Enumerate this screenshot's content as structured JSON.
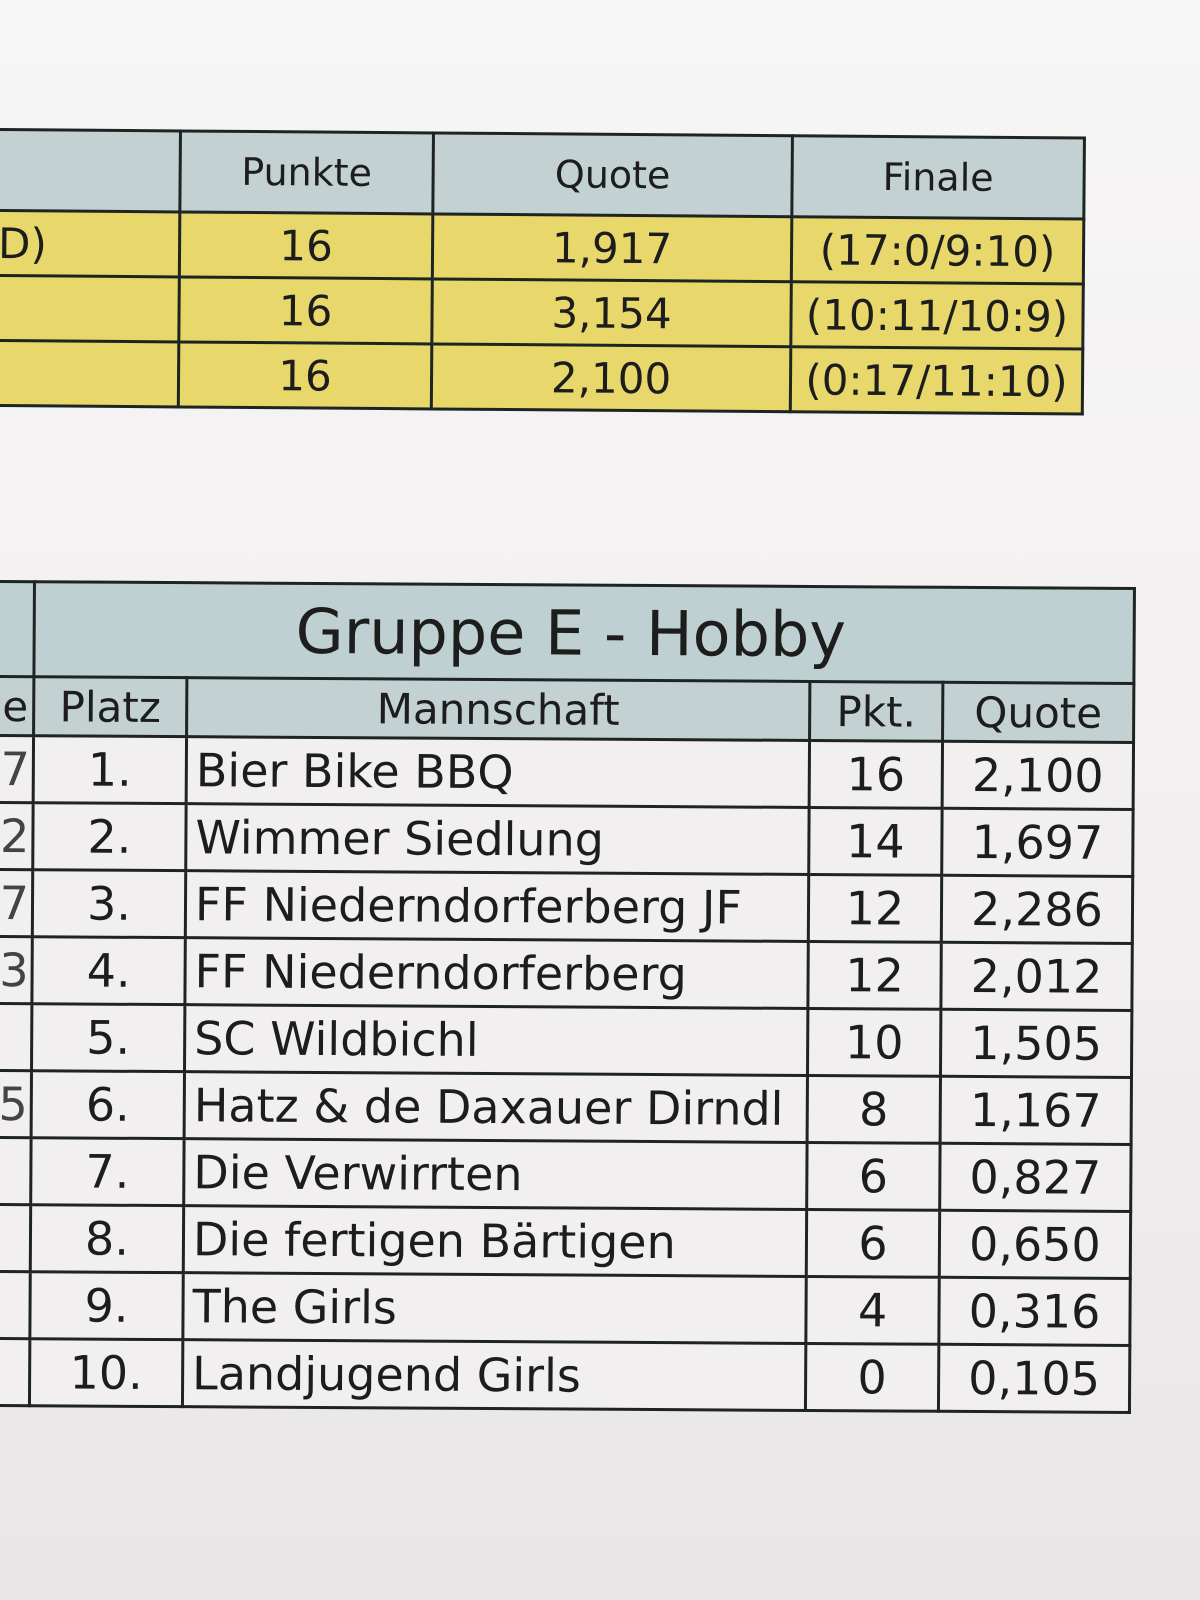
{
  "top_table": {
    "headers": [
      "",
      "Punkte",
      "Quote",
      "Finale"
    ],
    "rows": [
      {
        "team_fragment": "D)",
        "punkte": "16",
        "quote": "1,917",
        "finale": "(17:0/9:10)"
      },
      {
        "team_fragment": "",
        "punkte": "16",
        "quote": "3,154",
        "finale": "(10:11/10:9)"
      },
      {
        "team_fragment": "",
        "punkte": "16",
        "quote": "2,100",
        "finale": "(0:17/11:10)"
      }
    ],
    "row_color": "#e8d86c",
    "header_color": "#c3d1d3"
  },
  "group_table": {
    "title": "Gruppe E - Hobby",
    "headers": {
      "edge": "e",
      "platz": "Platz",
      "mannschaft": "Mannschaft",
      "pkt": "Pkt.",
      "quote": "Quote"
    },
    "rows": [
      {
        "edge": "7",
        "platz": "1.",
        "team": "Bier Bike BBQ",
        "pkt": "16",
        "quote": "2,100"
      },
      {
        "edge": "2",
        "platz": "2.",
        "team": "Wimmer Siedlung",
        "pkt": "14",
        "quote": "1,697"
      },
      {
        "edge": "7",
        "platz": "3.",
        "team": "FF Niederndorferberg JF",
        "pkt": "12",
        "quote": "2,286"
      },
      {
        "edge": "3",
        "platz": "4.",
        "team": "FF Niederndorferberg",
        "pkt": "12",
        "quote": "2,012"
      },
      {
        "edge": "",
        "platz": "5.",
        "team": "SC Wildbichl",
        "pkt": "10",
        "quote": "1,505"
      },
      {
        "edge": "5",
        "platz": "6.",
        "team": "Hatz & de Daxauer Dirndl",
        "pkt": "8",
        "quote": "1,167"
      },
      {
        "edge": "",
        "platz": "7.",
        "team": "Die Verwirrten",
        "pkt": "6",
        "quote": "0,827"
      },
      {
        "edge": "",
        "platz": "8.",
        "team": "Die fertigen Bärtigen",
        "pkt": "6",
        "quote": "0,650"
      },
      {
        "edge": "",
        "platz": "9.",
        "team": "The Girls",
        "pkt": "4",
        "quote": "0,316"
      },
      {
        "edge": "",
        "platz": "10.",
        "team": "Landjugend Girls",
        "pkt": "0",
        "quote": "0,105"
      }
    ]
  }
}
